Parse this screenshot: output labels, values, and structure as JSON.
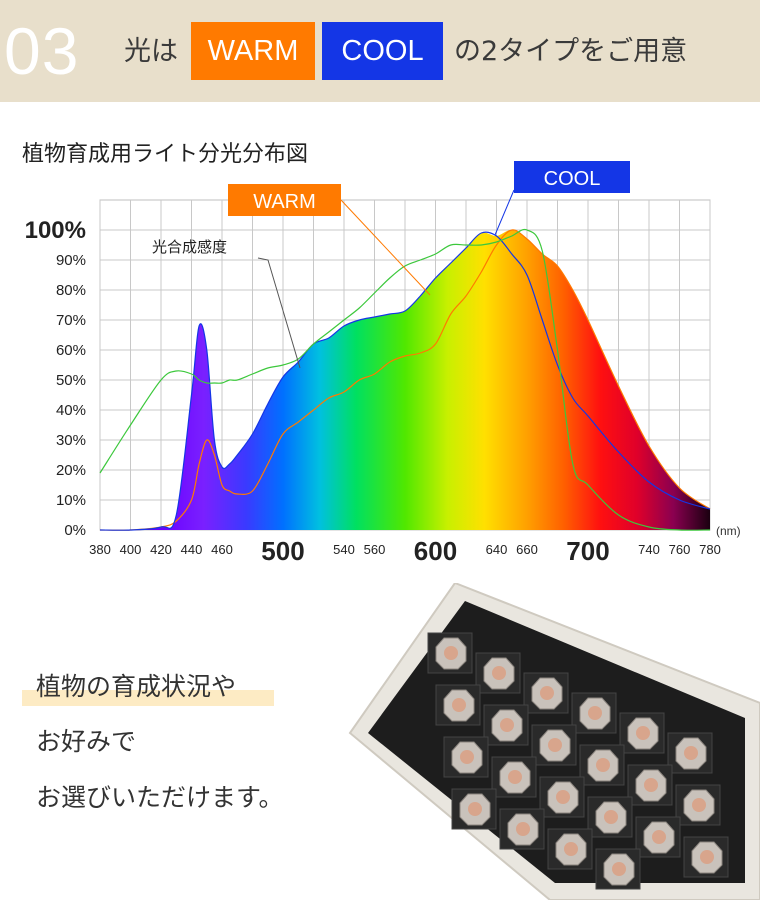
{
  "header": {
    "number": "03",
    "prefix": "光は",
    "warm": "WARM",
    "cool": "COOL",
    "suffix": "の2タイプをご用意",
    "warm_color": "#ff7a00",
    "cool_color": "#1436e6"
  },
  "chart_data": {
    "type": "area",
    "title": "植物育成用ライト分光分布図",
    "xlabel": "(nm)",
    "xlim": [
      380,
      780
    ],
    "ylim": [
      0,
      100
    ],
    "x_ticks": [
      "380",
      "400",
      "420",
      "440",
      "460",
      "500",
      "540",
      "560",
      "600",
      "640",
      "660",
      "700",
      "740",
      "760",
      "780"
    ],
    "y_ticks": [
      "0%",
      "10%",
      "20%",
      "30%",
      "40%",
      "50%",
      "60%",
      "70%",
      "80%",
      "90%",
      "100%"
    ],
    "annotations": [
      "光合成感度",
      "WARM",
      "COOL"
    ],
    "x": [
      380,
      400,
      420,
      430,
      440,
      445,
      450,
      455,
      460,
      465,
      470,
      480,
      490,
      500,
      510,
      520,
      530,
      540,
      550,
      560,
      570,
      580,
      590,
      600,
      610,
      620,
      630,
      640,
      650,
      660,
      670,
      680,
      690,
      700,
      720,
      740,
      760,
      780
    ],
    "series": [
      {
        "name": "WARM",
        "color": "#ff7a00",
        "values": [
          0,
          0,
          1,
          3,
          10,
          22,
          30,
          25,
          15,
          13,
          12,
          13,
          22,
          32,
          36,
          40,
          44,
          46,
          50,
          52,
          56,
          58,
          59,
          62,
          72,
          78,
          86,
          95,
          100,
          97,
          92,
          88,
          80,
          70,
          48,
          28,
          14,
          7
        ]
      },
      {
        "name": "COOL",
        "color": "#1436e6",
        "values": [
          0,
          0,
          1,
          5,
          45,
          68,
          60,
          30,
          21,
          22,
          25,
          32,
          42,
          51,
          56,
          62,
          64,
          68,
          70,
          71,
          72,
          73,
          78,
          84,
          89,
          94,
          99,
          98,
          92,
          85,
          70,
          55,
          44,
          38,
          26,
          16,
          10,
          7
        ]
      },
      {
        "name": "光合成感度",
        "color": "#3cc83c",
        "values": [
          19,
          35,
          50,
          53,
          52,
          50,
          49,
          49,
          49,
          50,
          50,
          52,
          54,
          55,
          57,
          62,
          66,
          70,
          74,
          79,
          84,
          88,
          90,
          92,
          95,
          95,
          95,
          96,
          98,
          100,
          93,
          60,
          22,
          15,
          5,
          1,
          0,
          0
        ]
      }
    ]
  },
  "caption": {
    "line1": "植物の育成状況や",
    "line2": "お好みで",
    "line3": "お選びいただけます。"
  }
}
